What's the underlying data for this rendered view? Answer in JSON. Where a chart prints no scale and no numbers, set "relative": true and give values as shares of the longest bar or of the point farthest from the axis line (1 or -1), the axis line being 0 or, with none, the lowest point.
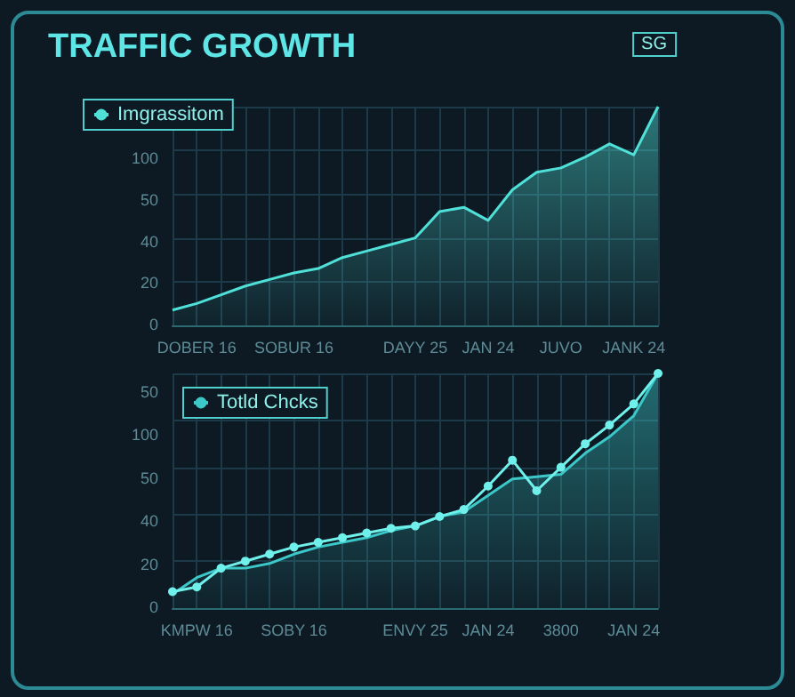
{
  "chart_data": [
    {
      "type": "area",
      "title": "TRAFFIC GROWTH",
      "subtitle": "SG",
      "relative": true,
      "grid": true,
      "legend": "top left",
      "annotations": [
        "0",
        "20",
        "40",
        "50",
        "100"
      ],
      "categories": [
        null,
        "DOBER 16",
        null,
        null,
        null,
        "SOBUR 16",
        null,
        null,
        null,
        null,
        "DAYY 25",
        null,
        null,
        "JAN 24",
        null,
        null,
        "JUVO",
        null,
        null,
        "JANK 24",
        null
      ],
      "series": [
        {
          "name": "Imgrassitom",
          "color": "#4fe0d8",
          "values": [
            0.07,
            0.1,
            0.14,
            0.18,
            0.21,
            0.24,
            0.26,
            0.31,
            0.34,
            0.37,
            0.4,
            0.52,
            0.54,
            0.48,
            0.62,
            0.7,
            0.72,
            0.77,
            0.83,
            0.78,
            1
          ]
        }
      ]
    },
    {
      "type": "line",
      "relative": true,
      "grid": true,
      "legend": "top left",
      "annotations": [
        "0",
        "20",
        "40",
        "50",
        "100",
        "50"
      ],
      "categories": [
        null,
        "KMPW 16",
        null,
        null,
        null,
        "SOBY 16",
        null,
        null,
        null,
        null,
        "ENVY 25",
        null,
        null,
        "JAN 24",
        null,
        null,
        "3800",
        null,
        null,
        "JAN 24",
        null
      ],
      "series": [
        {
          "name": "Totld Chcks",
          "type": "area",
          "color": "#3cc8c8",
          "marker": "none",
          "values": [
            0.06,
            0.13,
            0.17,
            0.17,
            0.19,
            0.23,
            0.26,
            0.28,
            0.3,
            0.33,
            0.35,
            0.39,
            0.41,
            0.48,
            0.55,
            0.56,
            0.57,
            0.66,
            0.73,
            0.82,
            1
          ]
        },
        {
          "color": "#6ff0ea",
          "marker": "circle",
          "values": [
            0.07,
            0.09,
            0.17,
            0.2,
            0.23,
            0.26,
            0.28,
            0.3,
            0.32,
            0.34,
            0.35,
            0.39,
            0.42,
            0.52,
            0.63,
            0.5,
            0.6,
            0.7,
            0.78,
            0.87,
            1
          ]
        }
      ]
    }
  ]
}
